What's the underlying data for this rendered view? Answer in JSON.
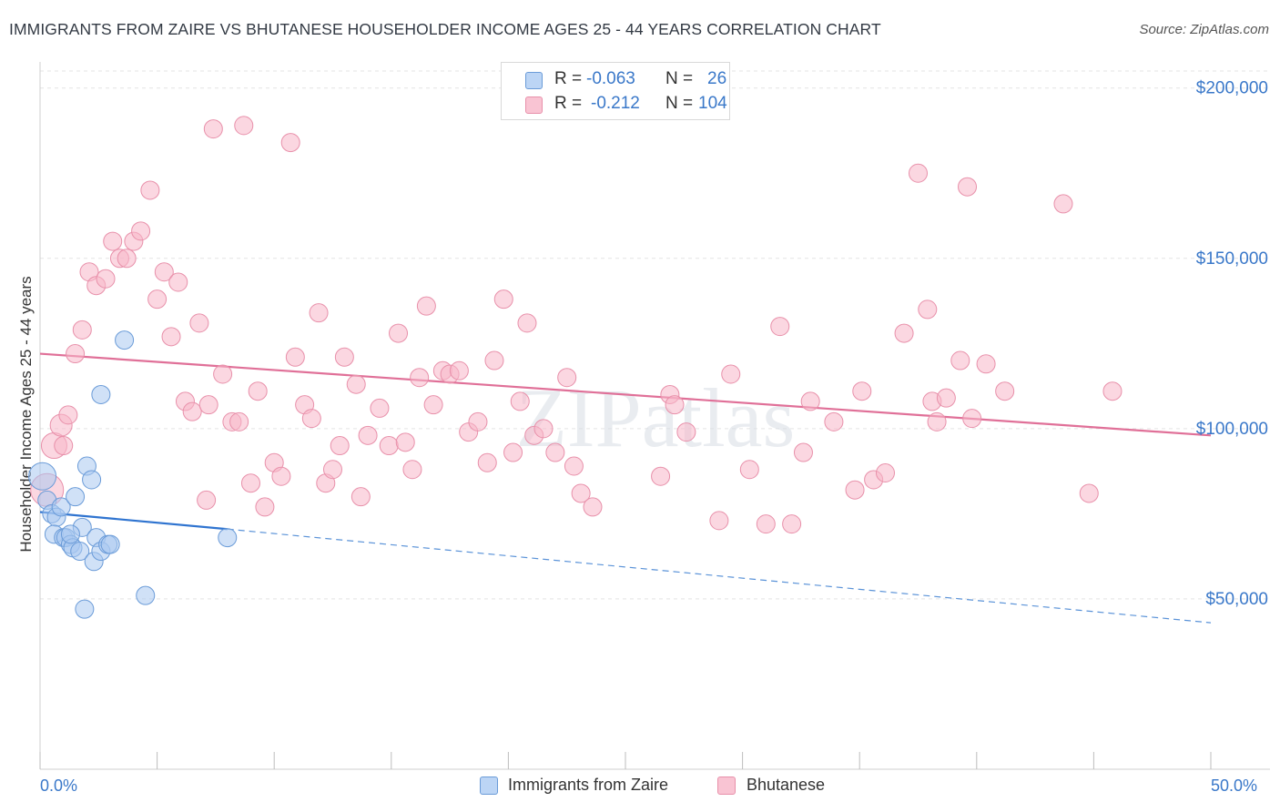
{
  "title": "IMMIGRANTS FROM ZAIRE VS BHUTANESE HOUSEHOLDER INCOME AGES 25 - 44 YEARS CORRELATION CHART",
  "source": "Source: ZipAtlas.com",
  "watermark": "ZIPatlas",
  "legend": {
    "series1": {
      "r_label": "R =",
      "r_value": "-0.063",
      "n_label": "N =",
      "n_value": "26",
      "color": "#a9c8f0",
      "stroke": "#6a9bd8"
    },
    "series2": {
      "r_label": "R =",
      "r_value": "-0.212",
      "n_label": "N =",
      "n_value": "104",
      "color": "#f7b6c8",
      "stroke": "#e890aa"
    }
  },
  "bottom_legend": {
    "series1_name": "Immigrants from Zaire",
    "series2_name": "Bhutanese"
  },
  "chart_data": {
    "type": "scatter",
    "title": "IMMIGRANTS FROM ZAIRE VS BHUTANESE HOUSEHOLDER INCOME AGES 25 - 44 YEARS CORRELATION CHART",
    "xlabel": "",
    "ylabel": "Householder Income Ages 25 - 44 years",
    "xlim": [
      0,
      50
    ],
    "ylim": [
      0,
      205000
    ],
    "x_tick_labels": [
      "0.0%",
      "50.0%"
    ],
    "y_ticks": [
      50000,
      100000,
      150000,
      200000
    ],
    "y_tick_labels": [
      "$50,000",
      "$100,000",
      "$150,000",
      "$200,000"
    ],
    "series": [
      {
        "name": "Immigrants from Zaire",
        "color": "#a9c8f0",
        "stroke": "#6a9bd8",
        "points": [
          [
            0.1,
            86000,
            15
          ],
          [
            0.3,
            79000,
            10
          ],
          [
            0.5,
            75000,
            10
          ],
          [
            0.7,
            74000,
            10
          ],
          [
            0.9,
            77000,
            10
          ],
          [
            0.6,
            69000,
            10
          ],
          [
            1.0,
            68000,
            10
          ],
          [
            1.1,
            68000,
            10
          ],
          [
            1.3,
            66000,
            10
          ],
          [
            1.4,
            65000,
            10
          ],
          [
            1.7,
            64000,
            10
          ],
          [
            1.5,
            80000,
            10
          ],
          [
            1.8,
            71000,
            10
          ],
          [
            2.0,
            89000,
            10
          ],
          [
            2.2,
            85000,
            10
          ],
          [
            2.3,
            61000,
            10
          ],
          [
            2.4,
            68000,
            10
          ],
          [
            2.6,
            64000,
            10
          ],
          [
            2.9,
            66000,
            10
          ],
          [
            3.0,
            66000,
            10
          ],
          [
            2.6,
            110000,
            10
          ],
          [
            3.6,
            126000,
            10
          ],
          [
            1.9,
            47000,
            10
          ],
          [
            4.5,
            51000,
            10
          ],
          [
            8.0,
            68000,
            10
          ],
          [
            1.3,
            69000,
            10
          ]
        ],
        "trend": {
          "x0": 0,
          "y0": 75500,
          "x1": 8.0,
          "y1": 70500,
          "dashed_to_x": 50,
          "dashed_to_y": 43000
        }
      },
      {
        "name": "Bhutanese",
        "color": "#f7b6c8",
        "stroke": "#e890aa",
        "points": [
          [
            0.3,
            82000,
            18
          ],
          [
            0.6,
            95000,
            14
          ],
          [
            0.9,
            101000,
            12
          ],
          [
            1.2,
            104000,
            10
          ],
          [
            1.5,
            122000,
            10
          ],
          [
            1.8,
            129000,
            10
          ],
          [
            2.1,
            146000,
            10
          ],
          [
            2.4,
            142000,
            10
          ],
          [
            2.8,
            144000,
            10
          ],
          [
            3.1,
            155000,
            10
          ],
          [
            3.4,
            150000,
            10
          ],
          [
            3.7,
            150000,
            10
          ],
          [
            4.0,
            155000,
            10
          ],
          [
            4.3,
            158000,
            10
          ],
          [
            4.7,
            170000,
            10
          ],
          [
            5.0,
            138000,
            10
          ],
          [
            5.3,
            146000,
            10
          ],
          [
            5.6,
            127000,
            10
          ],
          [
            5.9,
            143000,
            10
          ],
          [
            6.2,
            108000,
            10
          ],
          [
            6.5,
            105000,
            10
          ],
          [
            6.8,
            131000,
            10
          ],
          [
            7.1,
            79000,
            10
          ],
          [
            7.4,
            188000,
            10
          ],
          [
            7.8,
            116000,
            10
          ],
          [
            8.2,
            102000,
            10
          ],
          [
            8.5,
            102000,
            10
          ],
          [
            8.7,
            189000,
            10
          ],
          [
            9.0,
            84000,
            10
          ],
          [
            9.3,
            111000,
            10
          ],
          [
            9.6,
            77000,
            10
          ],
          [
            10.0,
            90000,
            10
          ],
          [
            10.3,
            86000,
            10
          ],
          [
            10.7,
            184000,
            10
          ],
          [
            10.9,
            121000,
            10
          ],
          [
            11.3,
            107000,
            10
          ],
          [
            11.6,
            103000,
            10
          ],
          [
            11.9,
            134000,
            10
          ],
          [
            12.2,
            84000,
            10
          ],
          [
            12.5,
            88000,
            10
          ],
          [
            12.8,
            95000,
            10
          ],
          [
            13.0,
            121000,
            10
          ],
          [
            13.5,
            113000,
            10
          ],
          [
            13.7,
            80000,
            10
          ],
          [
            14.0,
            98000,
            10
          ],
          [
            14.5,
            106000,
            10
          ],
          [
            14.9,
            95000,
            10
          ],
          [
            15.3,
            128000,
            10
          ],
          [
            15.6,
            96000,
            10
          ],
          [
            15.9,
            88000,
            10
          ],
          [
            16.2,
            115000,
            10
          ],
          [
            16.5,
            136000,
            10
          ],
          [
            16.8,
            107000,
            10
          ],
          [
            17.2,
            117000,
            10
          ],
          [
            17.5,
            116000,
            10
          ],
          [
            17.9,
            117000,
            10
          ],
          [
            18.3,
            99000,
            10
          ],
          [
            18.7,
            102000,
            10
          ],
          [
            19.1,
            90000,
            10
          ],
          [
            19.4,
            120000,
            10
          ],
          [
            19.8,
            138000,
            10
          ],
          [
            20.2,
            93000,
            10
          ],
          [
            20.5,
            108000,
            10
          ],
          [
            20.8,
            131000,
            10
          ],
          [
            21.1,
            98000,
            10
          ],
          [
            21.5,
            100000,
            10
          ],
          [
            22.0,
            93000,
            10
          ],
          [
            22.5,
            115000,
            10
          ],
          [
            22.8,
            89000,
            10
          ],
          [
            23.1,
            81000,
            10
          ],
          [
            23.6,
            77000,
            10
          ],
          [
            26.5,
            86000,
            10
          ],
          [
            26.9,
            110000,
            10
          ],
          [
            27.1,
            107000,
            10
          ],
          [
            27.6,
            99000,
            10
          ],
          [
            29.0,
            73000,
            10
          ],
          [
            29.5,
            116000,
            10
          ],
          [
            30.3,
            88000,
            10
          ],
          [
            31.0,
            72000,
            10
          ],
          [
            31.6,
            130000,
            10
          ],
          [
            32.1,
            72000,
            10
          ],
          [
            32.6,
            93000,
            10
          ],
          [
            32.9,
            108000,
            10
          ],
          [
            33.9,
            102000,
            10
          ],
          [
            34.8,
            82000,
            10
          ],
          [
            35.1,
            111000,
            10
          ],
          [
            35.6,
            85000,
            10
          ],
          [
            36.1,
            87000,
            10
          ],
          [
            36.9,
            128000,
            10
          ],
          [
            37.5,
            175000,
            10
          ],
          [
            37.9,
            135000,
            10
          ],
          [
            38.1,
            108000,
            10
          ],
          [
            38.3,
            102000,
            10
          ],
          [
            38.7,
            109000,
            10
          ],
          [
            39.3,
            120000,
            10
          ],
          [
            39.6,
            171000,
            10
          ],
          [
            39.8,
            103000,
            10
          ],
          [
            40.4,
            119000,
            10
          ],
          [
            41.2,
            111000,
            10
          ],
          [
            43.7,
            166000,
            10
          ],
          [
            44.8,
            81000,
            10
          ],
          [
            45.8,
            111000,
            10
          ],
          [
            1.0,
            95000,
            10
          ],
          [
            7.2,
            107000,
            10
          ]
        ],
        "trend": {
          "x0": 0,
          "y0": 122000,
          "x1": 50,
          "y1": 98000
        }
      }
    ]
  }
}
